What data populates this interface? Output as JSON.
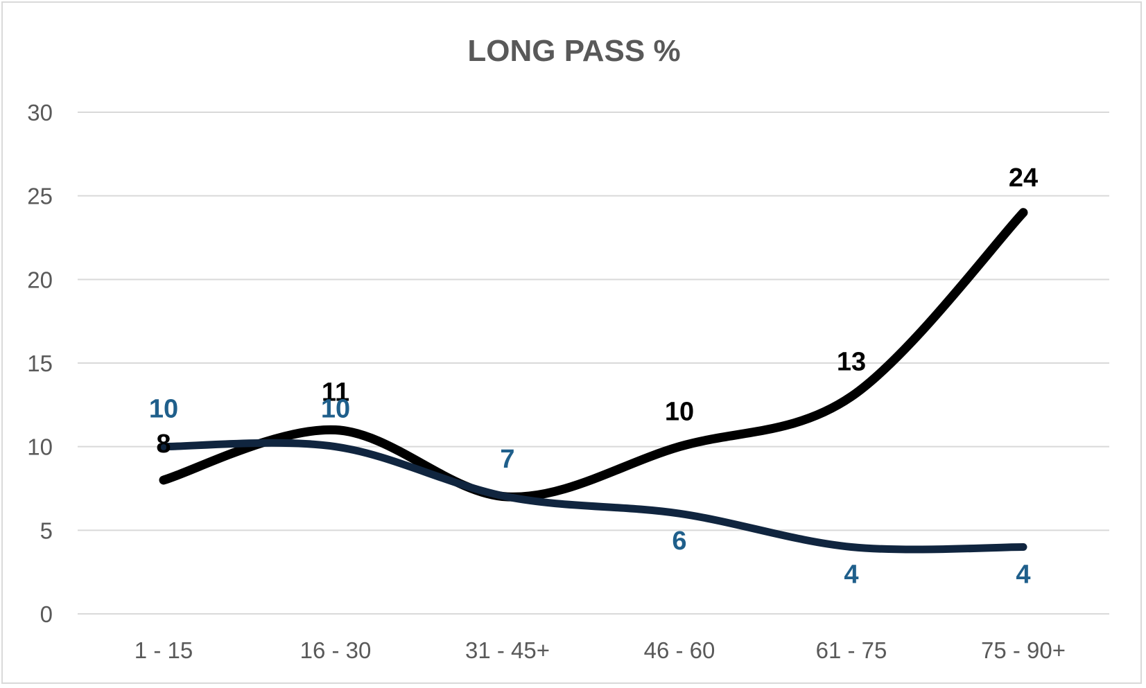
{
  "chart_data": {
    "type": "line",
    "title": "LONG PASS %",
    "xlabel": "",
    "ylabel": "",
    "categories": [
      "1 - 15",
      "16 - 30",
      "31 - 45+",
      "46 - 60",
      "61 - 75",
      "75 - 90+"
    ],
    "ylim": [
      0,
      30
    ],
    "yticks": [
      0,
      5,
      10,
      15,
      20,
      25,
      30
    ],
    "grid": true,
    "smooth": true,
    "series": [
      {
        "values": [
          8,
          11,
          7,
          10,
          13,
          24
        ],
        "color": "#000000",
        "label_color": "#000000"
      },
      {
        "values": [
          10,
          10,
          7,
          6,
          4,
          4
        ],
        "color": "#10253f",
        "label_color": "#1f5f8b"
      }
    ]
  }
}
